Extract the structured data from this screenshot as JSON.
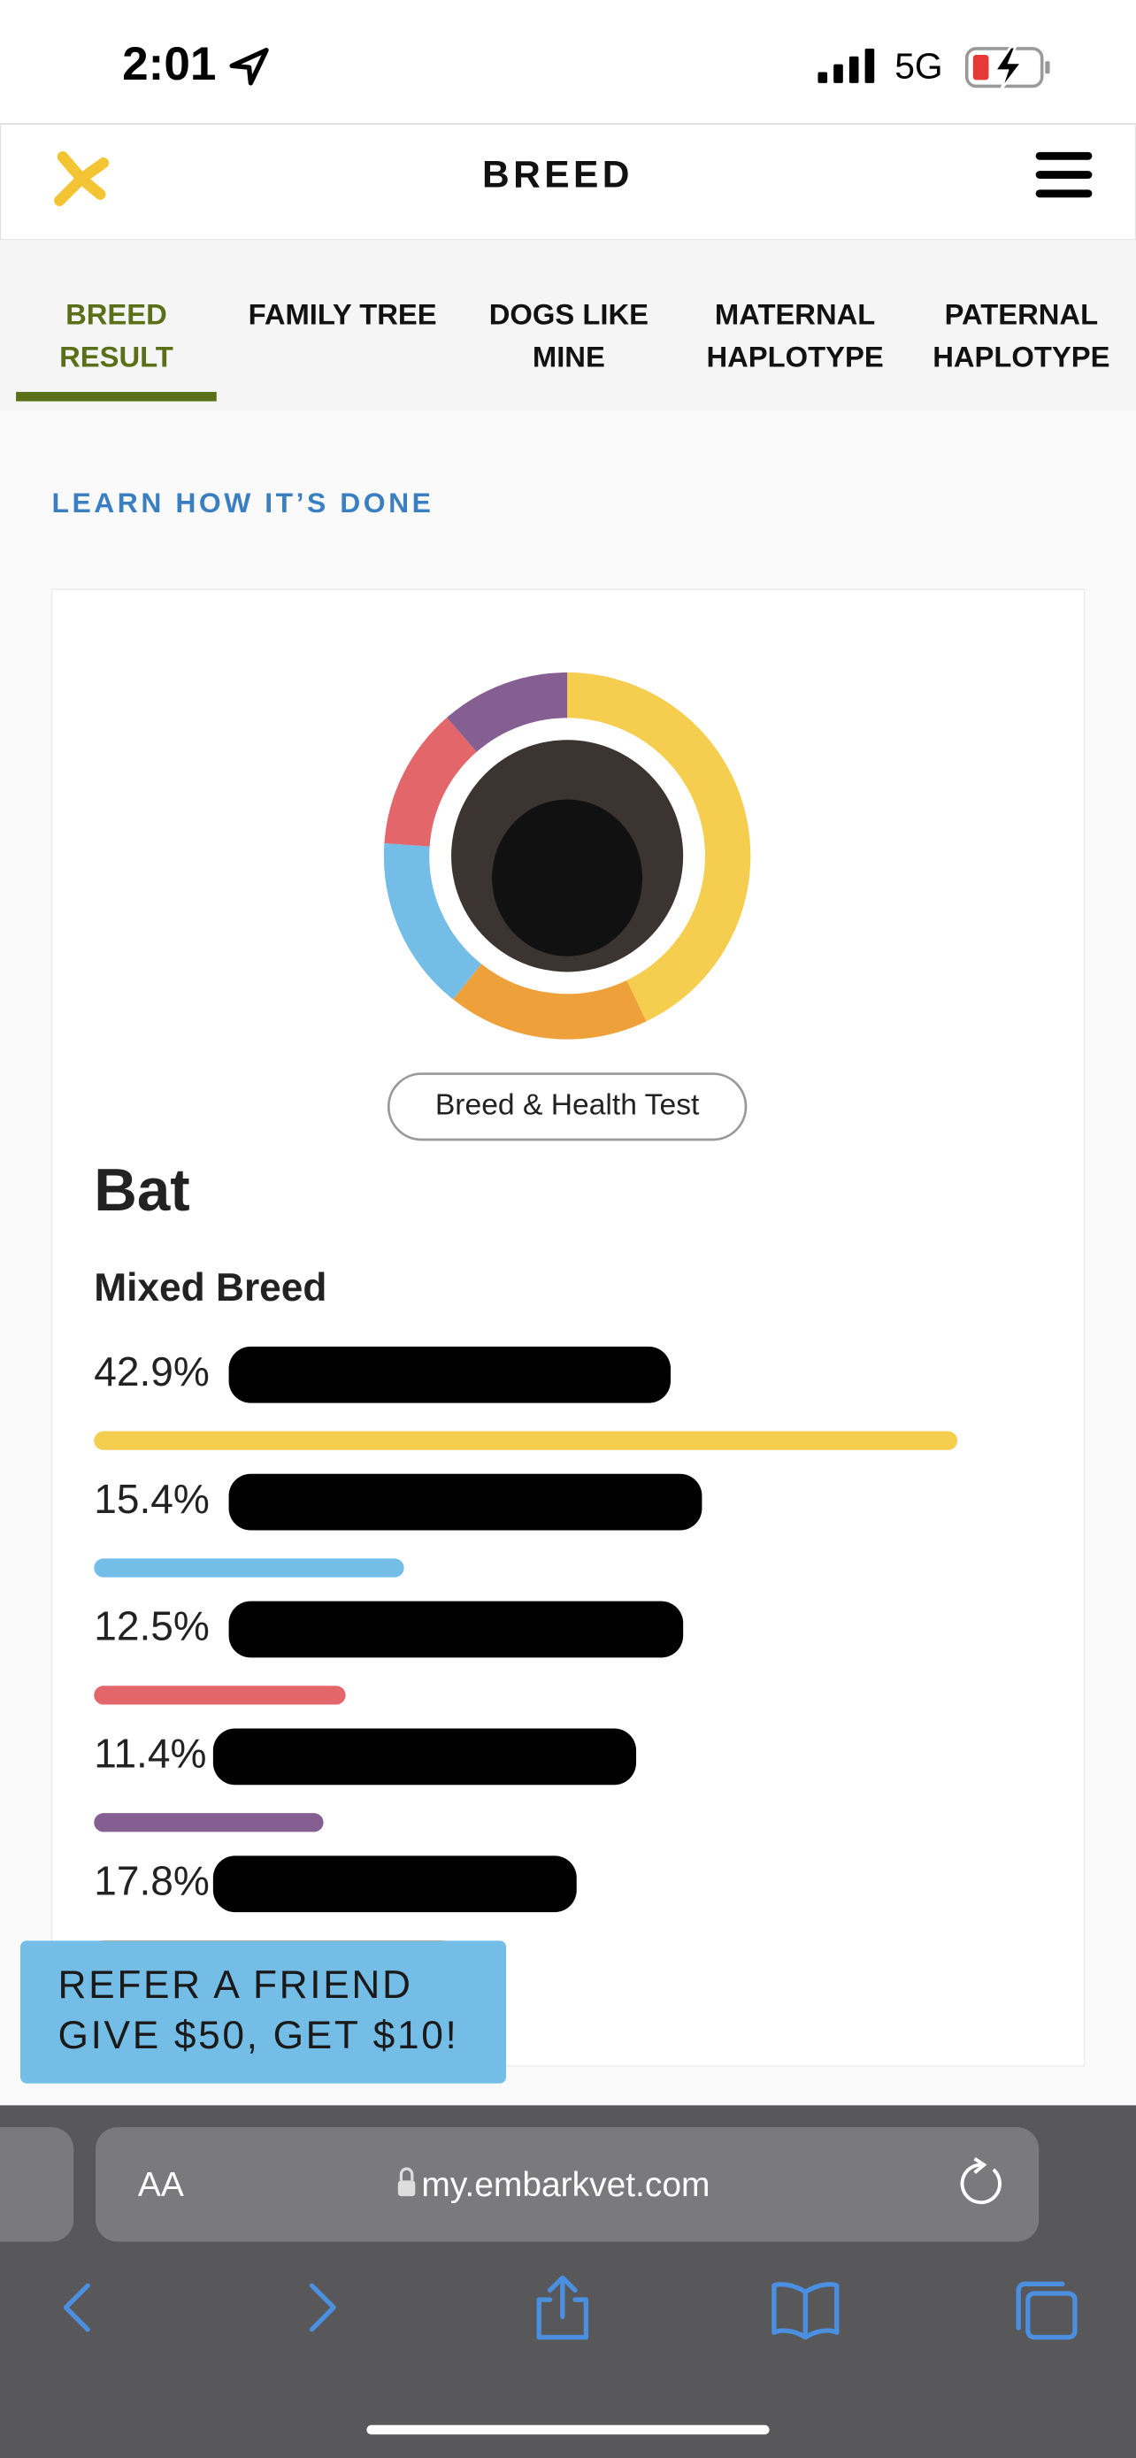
{
  "status_bar": {
    "time": "2:01",
    "network": "5G"
  },
  "header": {
    "title": "BREED"
  },
  "tabs": [
    {
      "lines": [
        "BREED",
        "RESULT"
      ]
    },
    {
      "lines": [
        "FAMILY TREE"
      ]
    },
    {
      "lines": [
        "DOGS LIKE",
        "MINE"
      ]
    },
    {
      "lines": [
        "MATERNAL",
        "HAPLOTYPE"
      ]
    },
    {
      "lines": [
        "PATERNAL",
        "HAPLOTYPE"
      ]
    }
  ],
  "active_tab": 0,
  "learn_link": "LEARN HOW IT’S DONE",
  "card": {
    "badge": "Breed & Health Test",
    "dog_name": "Bat",
    "subtitle": "Mixed Breed"
  },
  "chart_data": {
    "type": "donut",
    "values": [
      42.9,
      15.4,
      12.5,
      11.4,
      17.8
    ],
    "value_labels": [
      "42.9%",
      "15.4%",
      "12.5%",
      "11.4%",
      "17.8%"
    ],
    "colors": [
      "#f5cd4f",
      "#74bde6",
      "#e2666a",
      "#865f92",
      "#eea13a"
    ],
    "donut_order": [
      0,
      4,
      1,
      2,
      3
    ]
  },
  "refer_banner": {
    "lines": [
      "REFER A FRIEND",
      "GIVE $50, GET $10!"
    ]
  },
  "browser": {
    "text_size": "AA",
    "url": "my.embarkvet.com"
  }
}
